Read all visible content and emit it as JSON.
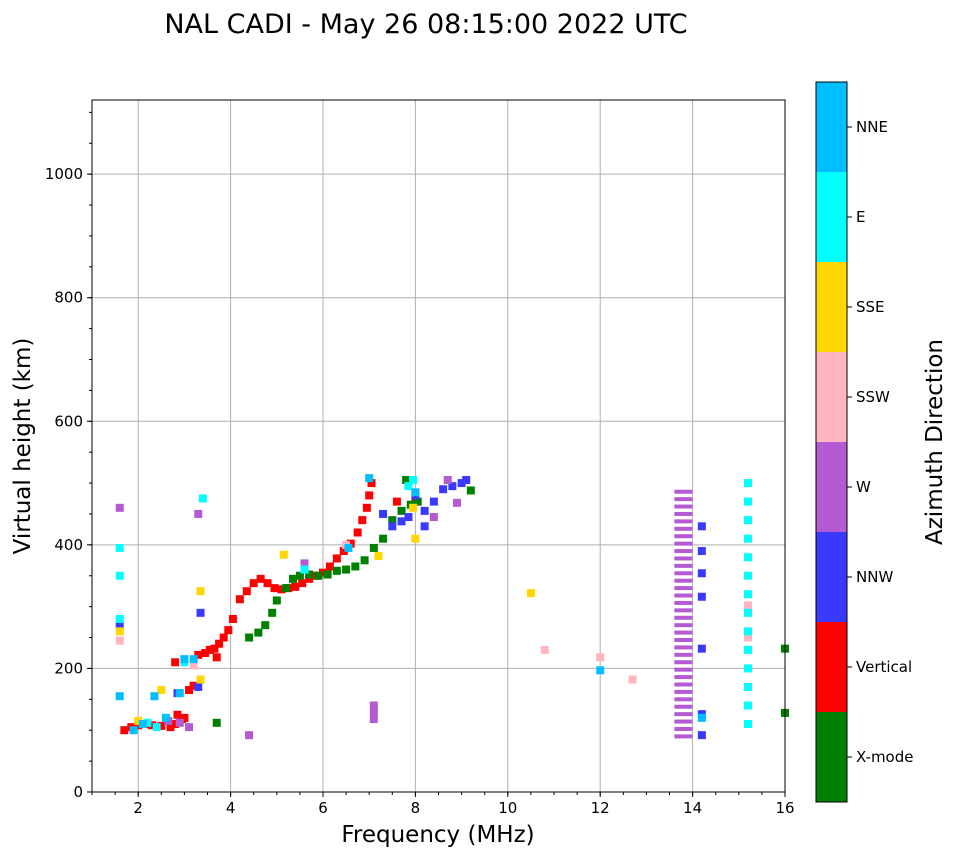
{
  "chart_data": {
    "type": "scatter",
    "title": "NAL CADI - May 26 08:15:00 2022 UTC",
    "xlabel": "Frequency (MHz)",
    "ylabel": "Virtual height (km)",
    "xlim": [
      1,
      16
    ],
    "ylim": [
      0,
      1120
    ],
    "x_ticks": [
      "2",
      "4",
      "6",
      "8",
      "10",
      "12",
      "14",
      "16"
    ],
    "y_ticks": [
      "0",
      "200",
      "400",
      "600",
      "800",
      "1000"
    ],
    "grid": true,
    "colorbar": {
      "label": "Azimuth Direction",
      "categories": [
        {
          "name": "X-mode",
          "color": "#008000"
        },
        {
          "name": "Vertical",
          "color": "#ff0000"
        },
        {
          "name": "NNW",
          "color": "#3a3aff"
        },
        {
          "name": "W",
          "color": "#b45ad2"
        },
        {
          "name": "SSW",
          "color": "#ffb6c1"
        },
        {
          "name": "SSE",
          "color": "#ffd700"
        },
        {
          "name": "E",
          "color": "#00ffff"
        },
        {
          "name": "NNE",
          "color": "#00bfff"
        }
      ]
    },
    "series": [
      {
        "name": "Vertical",
        "points": [
          [
            1.7,
            100
          ],
          [
            1.85,
            105
          ],
          [
            2.0,
            108
          ],
          [
            2.15,
            110
          ],
          [
            2.3,
            108
          ],
          [
            2.5,
            107
          ],
          [
            2.7,
            105
          ],
          [
            2.8,
            110
          ],
          [
            2.85,
            125
          ],
          [
            2.95,
            118
          ],
          [
            3.0,
            120
          ],
          [
            3.1,
            165
          ],
          [
            3.2,
            172
          ],
          [
            3.3,
            222
          ],
          [
            3.45,
            225
          ],
          [
            3.55,
            230
          ],
          [
            3.65,
            232
          ],
          [
            3.75,
            240
          ],
          [
            3.85,
            250
          ],
          [
            3.95,
            262
          ],
          [
            4.05,
            280
          ],
          [
            4.2,
            312
          ],
          [
            4.35,
            325
          ],
          [
            4.5,
            338
          ],
          [
            4.65,
            345
          ],
          [
            4.8,
            338
          ],
          [
            4.95,
            330
          ],
          [
            5.1,
            328
          ],
          [
            5.25,
            330
          ],
          [
            5.4,
            332
          ],
          [
            5.55,
            338
          ],
          [
            5.7,
            345
          ],
          [
            5.85,
            350
          ],
          [
            6.0,
            355
          ],
          [
            6.15,
            365
          ],
          [
            6.3,
            378
          ],
          [
            6.45,
            390
          ],
          [
            6.6,
            402
          ],
          [
            6.75,
            420
          ],
          [
            6.85,
            440
          ],
          [
            6.95,
            460
          ],
          [
            7.0,
            480
          ],
          [
            7.05,
            500
          ],
          [
            7.6,
            470
          ],
          [
            8.0,
            470
          ],
          [
            2.8,
            210
          ],
          [
            3.7,
            218
          ]
        ]
      },
      {
        "name": "X-mode",
        "points": [
          [
            3.7,
            112
          ],
          [
            4.4,
            250
          ],
          [
            4.6,
            258
          ],
          [
            4.75,
            270
          ],
          [
            4.9,
            290
          ],
          [
            5.0,
            310
          ],
          [
            5.2,
            330
          ],
          [
            5.35,
            345
          ],
          [
            5.5,
            350
          ],
          [
            5.7,
            352
          ],
          [
            5.9,
            350
          ],
          [
            6.1,
            352
          ],
          [
            6.3,
            358
          ],
          [
            6.5,
            360
          ],
          [
            6.7,
            365
          ],
          [
            6.9,
            375
          ],
          [
            7.1,
            395
          ],
          [
            7.3,
            410
          ],
          [
            7.5,
            440
          ],
          [
            7.7,
            455
          ],
          [
            7.9,
            465
          ],
          [
            8.05,
            470
          ],
          [
            9.2,
            488
          ],
          [
            7.8,
            505
          ],
          [
            16.0,
            232
          ],
          [
            16.0,
            128
          ]
        ]
      },
      {
        "name": "NNW",
        "points": [
          [
            7.3,
            450
          ],
          [
            7.5,
            430
          ],
          [
            7.7,
            438
          ],
          [
            7.85,
            445
          ],
          [
            8.0,
            480
          ],
          [
            8.2,
            455
          ],
          [
            8.4,
            470
          ],
          [
            8.6,
            490
          ],
          [
            8.8,
            495
          ],
          [
            9.0,
            500
          ],
          [
            9.1,
            505
          ],
          [
            8.2,
            430
          ],
          [
            3.35,
            290
          ],
          [
            1.6,
            270
          ],
          [
            3.3,
            170
          ],
          [
            2.85,
            160
          ],
          [
            14.2,
            430
          ],
          [
            14.2,
            390
          ],
          [
            14.2,
            354
          ],
          [
            14.2,
            316
          ],
          [
            14.2,
            232
          ],
          [
            14.2,
            126
          ],
          [
            14.2,
            92
          ]
        ]
      },
      {
        "name": "W",
        "points": [
          [
            7.1,
            140
          ],
          [
            7.1,
            130
          ],
          [
            7.1,
            118
          ],
          [
            4.4,
            92
          ],
          [
            3.3,
            450
          ],
          [
            1.6,
            460
          ],
          [
            5.6,
            370
          ],
          [
            8.7,
            505
          ],
          [
            8.9,
            468
          ],
          [
            8.4,
            445
          ],
          [
            2.65,
            115
          ],
          [
            2.9,
            112
          ],
          [
            3.1,
            105
          ]
        ]
      },
      {
        "name": "SSW",
        "points": [
          [
            10.8,
            230
          ],
          [
            12.0,
            218
          ],
          [
            12.7,
            182
          ],
          [
            15.2,
            302
          ],
          [
            15.2,
            250
          ],
          [
            1.6,
            245
          ],
          [
            6.5,
            400
          ],
          [
            3.2,
            205
          ]
        ]
      },
      {
        "name": "SSE",
        "points": [
          [
            10.5,
            322
          ],
          [
            7.2,
            382
          ],
          [
            5.15,
            384
          ],
          [
            8.0,
            410
          ],
          [
            3.35,
            325
          ],
          [
            3.35,
            182
          ],
          [
            1.6,
            260
          ],
          [
            2.5,
            165
          ],
          [
            2.0,
            115
          ],
          [
            7.95,
            460
          ]
        ]
      },
      {
        "name": "E",
        "points": [
          [
            1.6,
            395
          ],
          [
            1.6,
            350
          ],
          [
            1.6,
            280
          ],
          [
            2.2,
            112
          ],
          [
            2.4,
            105
          ],
          [
            3.0,
            210
          ],
          [
            3.4,
            475
          ],
          [
            7.85,
            495
          ],
          [
            7.95,
            505
          ],
          [
            5.6,
            360
          ],
          [
            15.2,
            500
          ],
          [
            15.2,
            470
          ],
          [
            15.2,
            440
          ],
          [
            15.2,
            410
          ],
          [
            15.2,
            380
          ],
          [
            15.2,
            350
          ],
          [
            15.2,
            320
          ],
          [
            15.2,
            290
          ],
          [
            15.2,
            260
          ],
          [
            15.2,
            230
          ],
          [
            15.2,
            200
          ],
          [
            15.2,
            170
          ],
          [
            15.2,
            140
          ],
          [
            15.2,
            110
          ]
        ]
      },
      {
        "name": "NNE",
        "points": [
          [
            1.6,
            155
          ],
          [
            2.35,
            155
          ],
          [
            2.6,
            120
          ],
          [
            2.9,
            160
          ],
          [
            3.0,
            215
          ],
          [
            3.2,
            215
          ],
          [
            12.0,
            197
          ],
          [
            7.0,
            508
          ],
          [
            6.55,
            395
          ],
          [
            8.0,
            485
          ],
          [
            1.9,
            100
          ],
          [
            2.1,
            110
          ],
          [
            14.2,
            120
          ]
        ]
      }
    ],
    "bands": [
      {
        "name": "W",
        "x": 13.8,
        "ymin": 90,
        "ymax": 495,
        "step": 12
      }
    ]
  }
}
